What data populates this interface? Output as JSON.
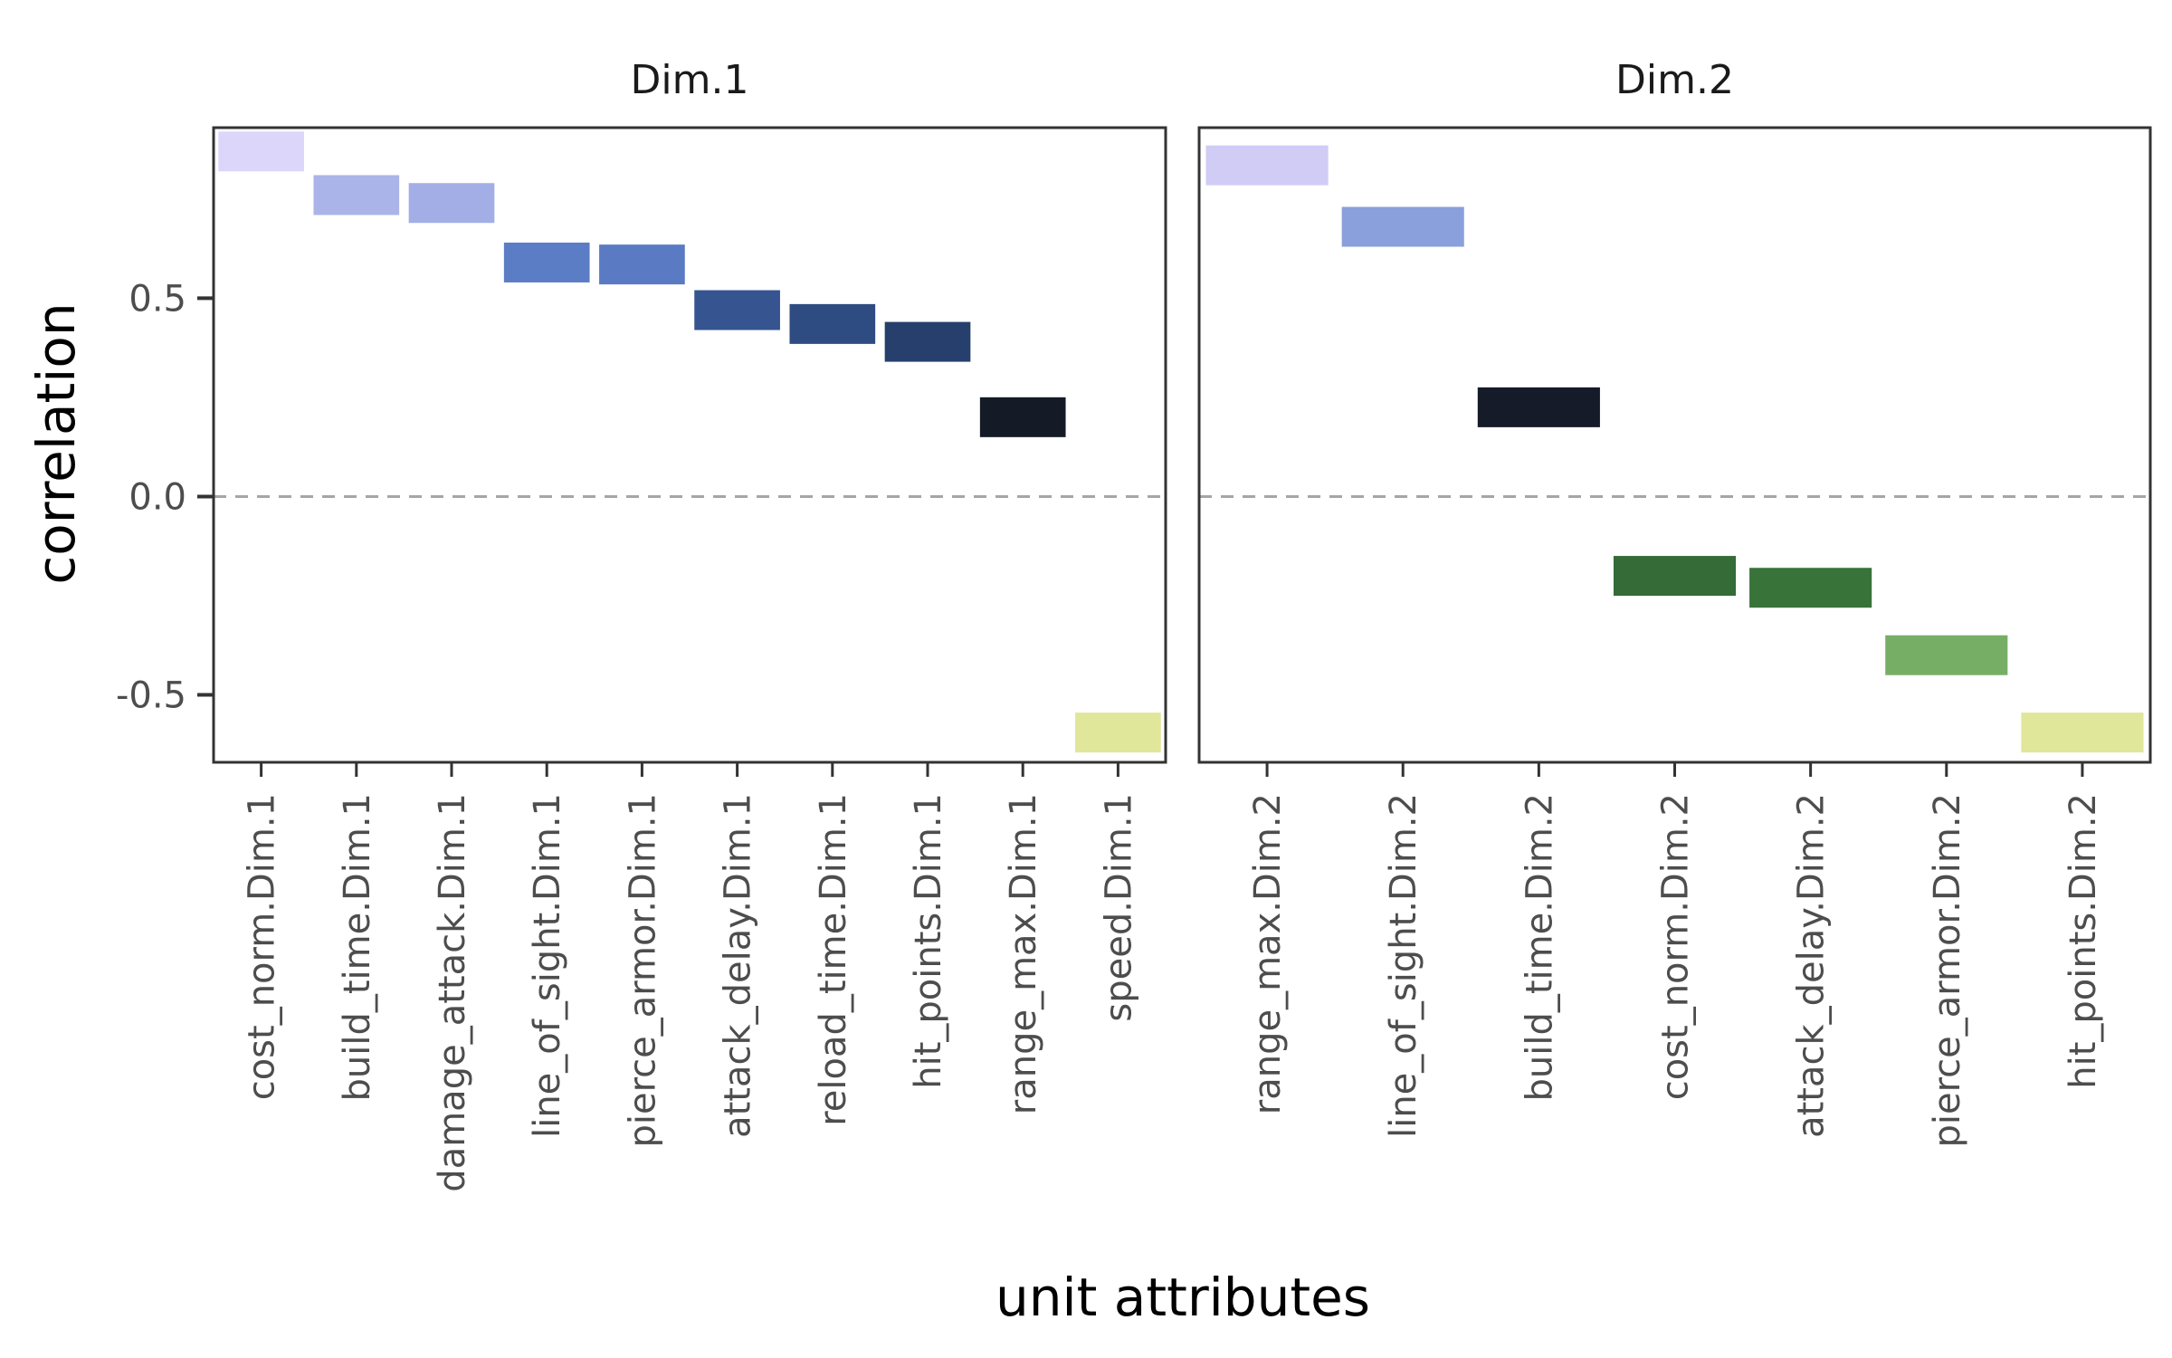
{
  "chart_data": {
    "type": "bar",
    "title": "",
    "xlabel": "unit attributes",
    "ylabel": "correlation",
    "ylim": [
      -0.67,
      0.93
    ],
    "y_ticks": [
      {
        "value": 0.5,
        "label": "0.5"
      },
      {
        "value": 0.0,
        "label": "0.0"
      },
      {
        "value": -0.5,
        "label": "-0.5"
      }
    ],
    "reference_line": {
      "value": 0.0,
      "style": "dashed",
      "color": "#a6a6a6"
    },
    "grid": false,
    "legend": "none",
    "mark": "crossbar (value shown as short bar centred on the correlation)",
    "panels": [
      {
        "strip": "Dim.1",
        "categories": [
          "cost_norm.Dim.1",
          "build_time.Dim.1",
          "damage_attack.Dim.1",
          "line_of_sight.Dim.1",
          "pierce_armor.Dim.1",
          "attack_delay.Dim.1",
          "reload_time.Dim.1",
          "hit_points.Dim.1",
          "range_max.Dim.1",
          "speed.Dim.1"
        ],
        "values": [
          0.87,
          0.76,
          0.74,
          0.59,
          0.585,
          0.47,
          0.435,
          0.39,
          0.2,
          -0.595
        ],
        "colors": [
          "#dcd6fb",
          "#aab4e8",
          "#a2aee5",
          "#5b7dc5",
          "#5a7bc4",
          "#36548f",
          "#2f4c82",
          "#263f6d",
          "#141a26",
          "#e0e69a"
        ]
      },
      {
        "strip": "Dim.2",
        "categories": [
          "range_max.Dim.2",
          "line_of_sight.Dim.2",
          "build_time.Dim.2",
          "cost_norm.Dim.2",
          "attack_delay.Dim.2",
          "pierce_armor.Dim.2",
          "hit_points.Dim.2"
        ],
        "values": [
          0.835,
          0.68,
          0.225,
          -0.2,
          -0.23,
          -0.4,
          -0.595
        ],
        "colors": [
          "#d0ccf6",
          "#8aa0dc",
          "#161b29",
          "#346b37",
          "#38733a",
          "#76ae66",
          "#e0e69a"
        ]
      }
    ]
  }
}
